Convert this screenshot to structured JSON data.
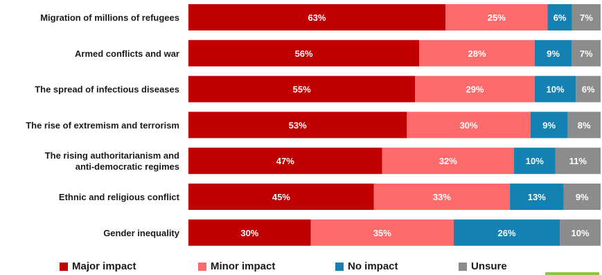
{
  "chart_data": {
    "type": "bar",
    "orientation": "horizontal",
    "stacked": true,
    "percent_stacked": true,
    "categories": [
      "Migration of millions of refugees",
      "Armed conflicts and war",
      "The spread of infectious diseases",
      "The rise of extremism and terrorism",
      "The rising authoritarianism and anti-democratic regimes",
      "Ethnic and religious conflict",
      "Gender inequality"
    ],
    "series": [
      {
        "name": "Major impact",
        "color": "#c00000",
        "values": [
          63,
          56,
          55,
          53,
          47,
          45,
          30
        ]
      },
      {
        "name": "Minor impact",
        "color": "#ff6b6b",
        "values": [
          25,
          28,
          29,
          30,
          32,
          33,
          35
        ]
      },
      {
        "name": "No impact",
        "color": "#1381b2",
        "values": [
          6,
          9,
          10,
          9,
          10,
          13,
          26
        ]
      },
      {
        "name": "Unsure",
        "color": "#8c8c8c",
        "values": [
          7,
          7,
          6,
          8,
          11,
          9,
          10
        ]
      }
    ],
    "value_suffix": "%",
    "legend_position": "bottom",
    "grid": false
  }
}
